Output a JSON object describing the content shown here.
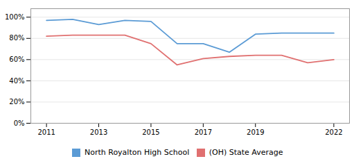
{
  "chart_data": {
    "type": "line",
    "x": [
      2011,
      2012,
      2013,
      2014,
      2015,
      2016,
      2017,
      2018,
      2019,
      2020,
      2021,
      2022
    ],
    "series": [
      {
        "name": "North Royalton High School",
        "color": "#5b9bd5",
        "values": [
          0.97,
          0.98,
          0.93,
          0.97,
          0.96,
          0.75,
          0.75,
          0.67,
          0.84,
          0.85,
          0.85,
          0.85
        ]
      },
      {
        "name": "(OH) State Average",
        "color": "#e07070",
        "values": [
          0.82,
          0.83,
          0.83,
          0.83,
          0.75,
          0.55,
          0.61,
          0.63,
          0.64,
          0.64,
          0.57,
          0.6
        ]
      }
    ],
    "xlim": [
      2010.4,
      2022.6
    ],
    "xticks": [
      2011,
      2013,
      2015,
      2017,
      2019,
      2022
    ],
    "ylim": [
      0.0,
      1.08
    ],
    "yticks": [
      {
        "value": 0.0,
        "label": "0%"
      },
      {
        "value": 0.2,
        "label": "20%"
      },
      {
        "value": 0.4,
        "label": "40%"
      },
      {
        "value": 0.6,
        "label": "60%"
      },
      {
        "value": 0.8,
        "label": "80%"
      },
      {
        "value": 1.0,
        "label": "100%"
      }
    ],
    "grid": true,
    "legend": "bottom"
  }
}
